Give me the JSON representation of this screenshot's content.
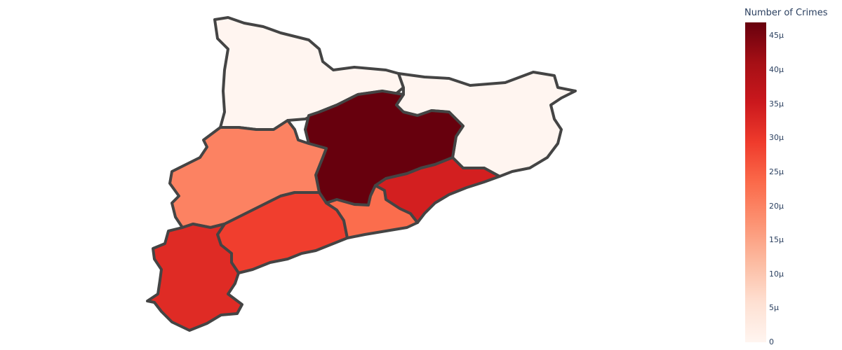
{
  "map": {
    "regions": [
      {
        "id": "northwest",
        "crimes": 0
      },
      {
        "id": "northeast",
        "crimes": 0
      },
      {
        "id": "central",
        "crimes": 47
      },
      {
        "id": "west",
        "crimes": 20
      },
      {
        "id": "southwest",
        "crimes": 32
      },
      {
        "id": "south-central",
        "crimes": 29
      },
      {
        "id": "coast-middle",
        "crimes": 23
      },
      {
        "id": "coast-east",
        "crimes": 34
      }
    ],
    "border_color": "#444444"
  },
  "colorbar": {
    "title": "Number of Crimes",
    "colorscale": "Reds",
    "min": 0,
    "max": 47,
    "ticks": [
      "0",
      "5μ",
      "10μ",
      "15μ",
      "20μ",
      "25μ",
      "30μ",
      "35μ",
      "40μ",
      "45μ"
    ]
  }
}
